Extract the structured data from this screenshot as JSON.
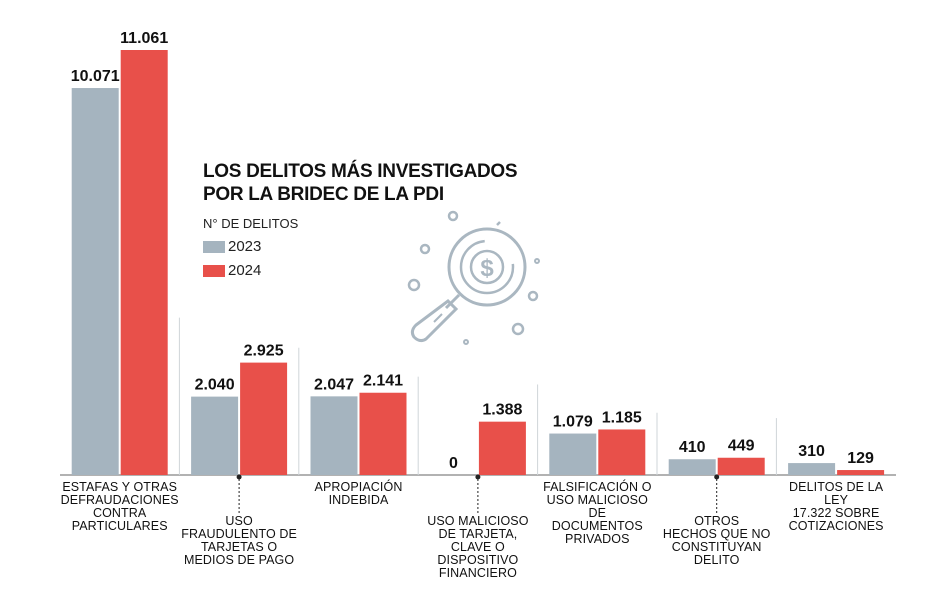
{
  "title_line1": "LOS DELITOS MÁS INVESTIGADOS",
  "title_line2": "POR LA BRIDEC DE LA PDI",
  "unit_label": "N° DE DELITOS",
  "colors": {
    "y2023": "#a5b4bf",
    "y2024": "#e8504a",
    "axis": "#999999"
  },
  "chart_data": {
    "type": "bar",
    "title": "LOS DELITOS MÁS INVESTIGADOS POR LA BRIDEC DE LA PDI",
    "ylabel": "N° DE DELITOS",
    "categories": [
      "ESTAFAS Y OTRAS DEFRAUDACIONES CONTRA PARTICULARES",
      "USO FRAUDULENTO DE TARJETAS O MEDIOS DE PAGO",
      "APROPIACIÓN INDEBIDA",
      "USO MALICIOSO DE TARJETA, CLAVE O DISPOSITIVO FINANCIERO",
      "FALSIFICACIÓN O USO MALICIOSO DE DOCUMENTOS PRIVADOS",
      "OTROS HECHOS QUE NO CONSTITUYAN DELITO",
      "DELITOS DE LA LEY 17.322 SOBRE COTIZACIONES"
    ],
    "label_lines": [
      [
        "ESTAFAS Y OTRAS",
        "DEFRAUDACIONES",
        "CONTRA",
        "PARTICULARES"
      ],
      [
        "USO",
        "FRAUDULENTO DE",
        "TARJETAS O",
        "MEDIOS DE PAGO"
      ],
      [
        "APROPIACIÓN",
        "INDEBIDA"
      ],
      [
        "USO MALICIOSO",
        "DE TARJETA, CLAVE O",
        "DISPOSITIVO",
        "FINANCIERO"
      ],
      [
        "FALSIFICACIÓN O",
        "USO MALICIOSO DE",
        "DOCUMENTOS",
        "PRIVADOS"
      ],
      [
        "OTROS",
        "HECHOS QUE NO",
        "CONSTITUYAN",
        "DELITO"
      ],
      [
        "DELITOS DE LA LEY",
        "17.322 SOBRE",
        "COTIZACIONES"
      ]
    ],
    "label_position": [
      "top",
      "bottom",
      "top",
      "bottom",
      "top",
      "bottom",
      "top"
    ],
    "series": [
      {
        "name": "2023",
        "values": [
          10071,
          2040,
          2047,
          0,
          1079,
          410,
          310
        ],
        "labels": [
          "10.071",
          "2.040",
          "2.047",
          "0",
          "1.079",
          "410",
          "310"
        ]
      },
      {
        "name": "2024",
        "values": [
          11061,
          2925,
          2141,
          1388,
          1185,
          449,
          129
        ],
        "labels": [
          "11.061",
          "2.925",
          "2.141",
          "1.388",
          "1.185",
          "449",
          "129"
        ]
      }
    ],
    "ylim": [
      0,
      11061
    ],
    "legend": "left-middle",
    "grid": false
  }
}
